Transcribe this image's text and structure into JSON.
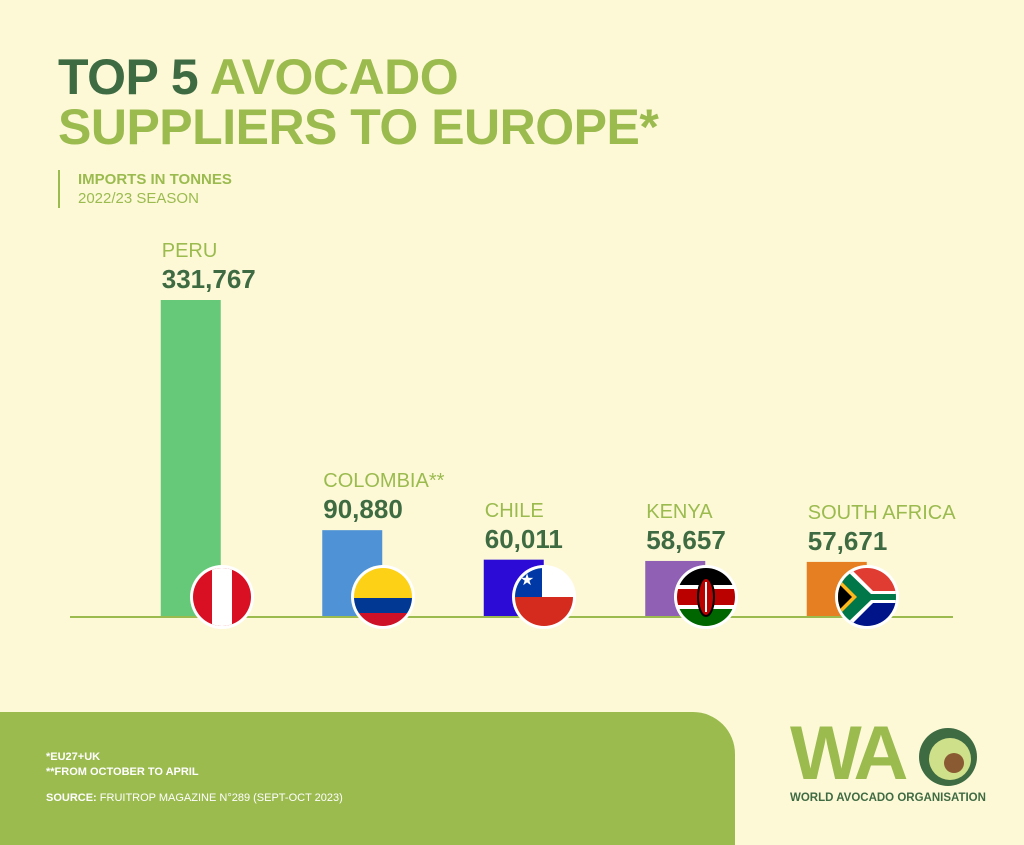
{
  "chart_data": {
    "type": "bar",
    "title": {
      "lead": "TOP 5",
      "rest": "AVOCADO SUPPLIERS TO EUROPE*"
    },
    "subtitle": [
      "IMPORTS IN TONNES",
      "2022/23 SEASON"
    ],
    "categories": [
      "PERU",
      "COLOMBIA**",
      "CHILE",
      "KENYA",
      "SOUTH AFRICA"
    ],
    "values": [
      331767,
      90880,
      60011,
      58657,
      57671
    ],
    "value_labels": [
      "331,767",
      "90,880",
      "60,011",
      "58,657",
      "57,671"
    ],
    "colors": [
      "#66c97a",
      "#4f93d6",
      "#2c0bd6",
      "#9060b4",
      "#e67e22"
    ]
  },
  "footer": {
    "notes": [
      "*EU27+UK",
      "**FROM OCTOBER TO APRIL"
    ],
    "source_label": "SOURCE:",
    "source": "FRUITROP MAGAZINE N°289 (SEPT-OCT 2023)"
  },
  "logo": {
    "letters": "WA",
    "name": "WORLD AVOCADO ORGANISATION"
  }
}
